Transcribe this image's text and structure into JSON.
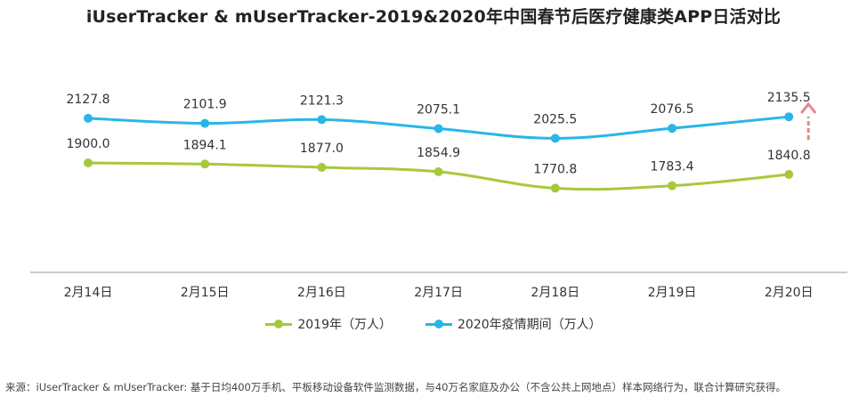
{
  "chart_data": {
    "type": "line",
    "title": "iUserTracker & mUserTracker-2019&2020年中国春节后医疗健康类APP日活对比",
    "categories": [
      "2月14日",
      "2月15日",
      "2月16日",
      "2月17日",
      "2月18日",
      "2月19日",
      "2月20日"
    ],
    "series": [
      {
        "name": "2019年（万人）",
        "color": "#a8c83c",
        "values": [
          1900.0,
          1894.1,
          1877.0,
          1854.9,
          1770.8,
          1783.4,
          1840.8
        ]
      },
      {
        "name": "2020年疫情期间（万人）",
        "color": "#29b6e6",
        "values": [
          2127.8,
          2101.9,
          2121.3,
          2075.1,
          2025.5,
          2076.5,
          2135.5
        ]
      }
    ],
    "legend": "bottom",
    "grid": false,
    "annotation_color": "#e8868a"
  },
  "source": "来源：iUserTracker & mUserTracker: 基于日均400万手机、平板移动设备软件监测数据，与40万名家庭及办公（不含公共上网地点）样本网络行为，联合计算研究获得。"
}
